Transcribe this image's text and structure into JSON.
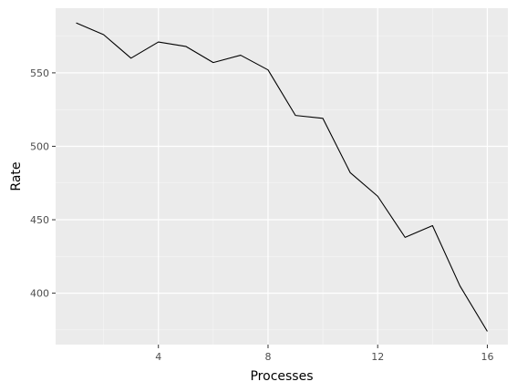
{
  "chart_data": {
    "type": "line",
    "title": "",
    "xlabel": "Processes",
    "ylabel": "Rate",
    "xlim": [
      0.25,
      16.75
    ],
    "ylim": [
      365,
      594
    ],
    "x_ticks": [
      4,
      8,
      12,
      16
    ],
    "x_minor_ticks": [
      2,
      6,
      10,
      14
    ],
    "y_ticks": [
      400,
      450,
      500,
      550
    ],
    "y_minor_ticks": [
      375,
      425,
      475,
      525,
      575
    ],
    "grid": true,
    "legend": "none",
    "colors": {
      "panel_background": "#ebebeb",
      "grid_major": "#ffffff",
      "grid_minor": "#f7f7f7",
      "line": "#000000",
      "tick_label": "#4d4d4d",
      "axis_title": "#000000"
    },
    "series": [
      {
        "x": [
          1,
          2,
          3,
          4,
          5,
          6,
          7,
          8,
          9,
          10,
          11,
          12,
          13,
          14,
          15,
          16
        ],
        "values": [
          584,
          576,
          560,
          571,
          568,
          557,
          562,
          552,
          521,
          519,
          482,
          466,
          438,
          446,
          405,
          374
        ]
      }
    ]
  }
}
